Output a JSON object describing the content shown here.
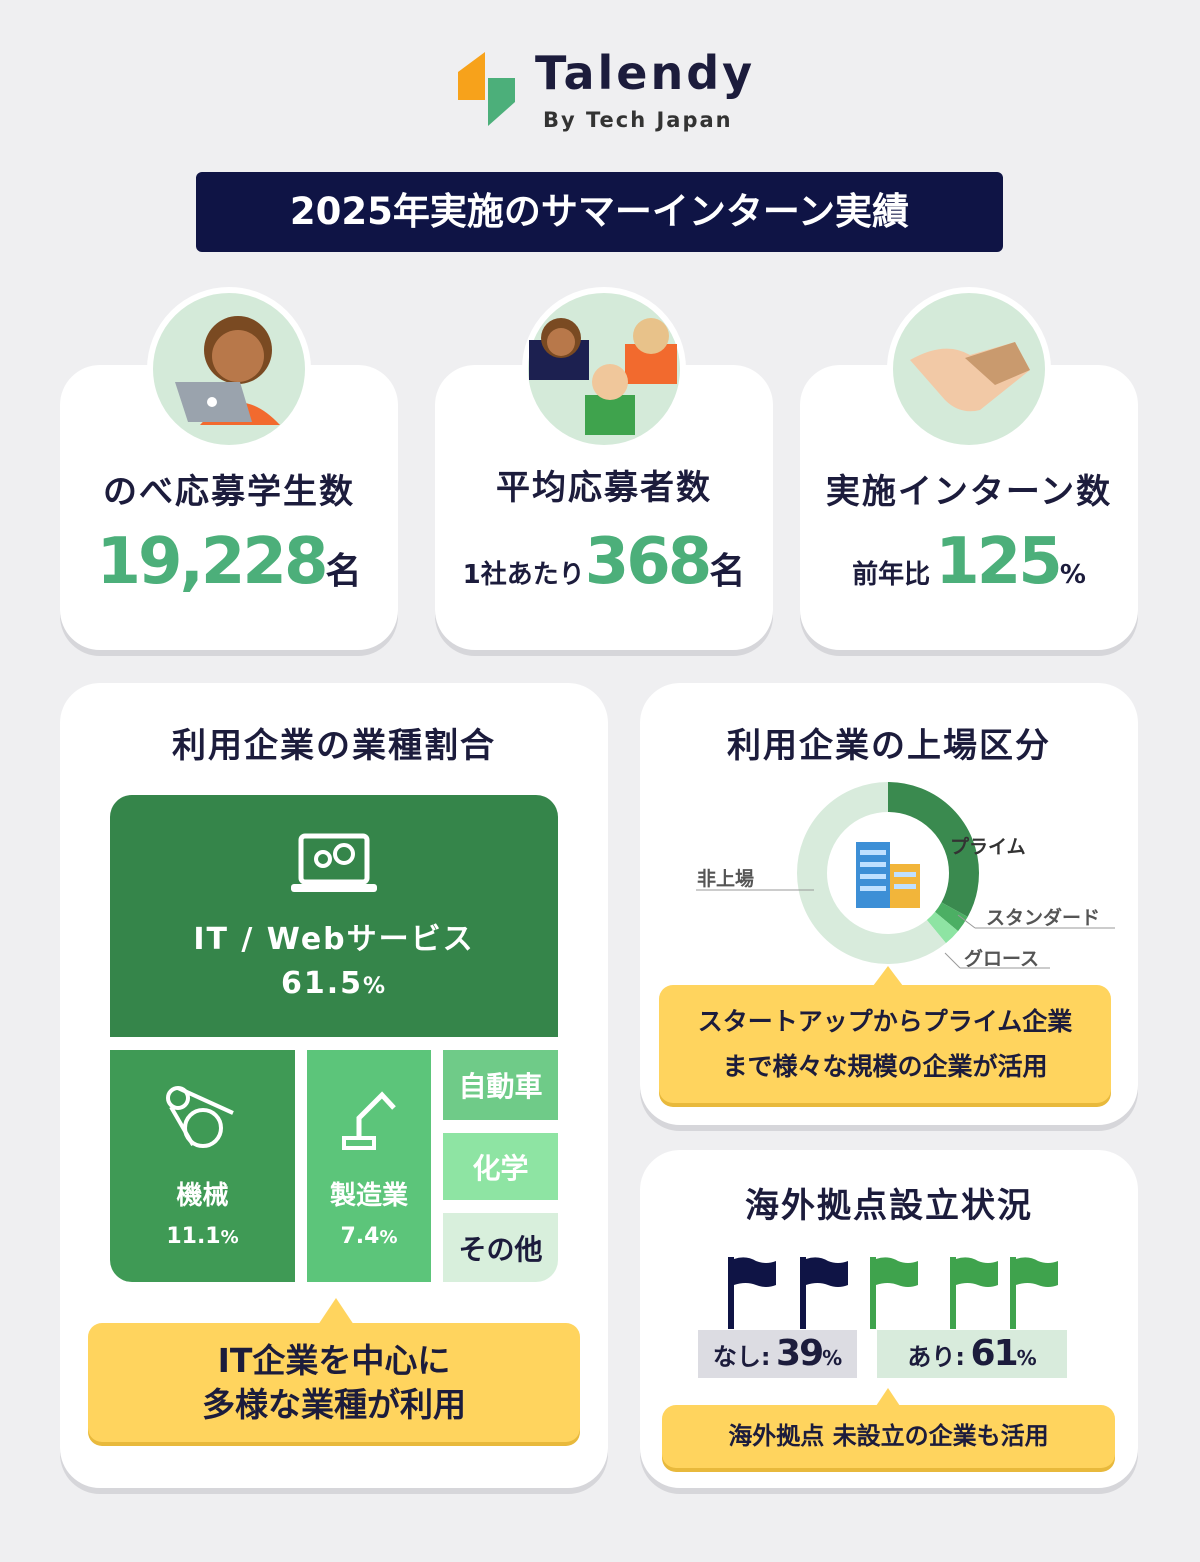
{
  "header": {
    "logo": "Talendy",
    "tagline": "By Tech Japan",
    "title": "2025年実施のサマーインターン実績"
  },
  "stats": [
    {
      "label": "のべ応募学生数",
      "value": "19,228",
      "unit": "名"
    },
    {
      "label": "平均応募者数",
      "prefix": "1社あたり",
      "value": "368",
      "unit": "名"
    },
    {
      "label": "実施インターン数",
      "prefix": "前年比",
      "value": "125",
      "unit": "%"
    }
  ],
  "industry": {
    "title": "利用企業の業種割合",
    "segments": [
      {
        "name": "IT / Webサービス",
        "value": "61.5",
        "unit": "%"
      },
      {
        "name": "機械",
        "value": "11.1",
        "unit": "%"
      },
      {
        "name": "製造業",
        "value": "7.4",
        "unit": "%"
      },
      {
        "name": "自動車"
      },
      {
        "name": "化学"
      },
      {
        "name": "その他"
      }
    ],
    "callout": [
      "IT企業を中心に",
      "多様な業種が利用"
    ]
  },
  "listing": {
    "title": "利用企業の上場区分",
    "segments": [
      {
        "name": "プライム",
        "value": 33,
        "color": "#3a8a4f"
      },
      {
        "name": "スタンダード",
        "value": 3,
        "color": "#4caf64"
      },
      {
        "name": "グロース",
        "value": 3,
        "color": "#8ee4a3"
      },
      {
        "name": "非上場",
        "value": 61,
        "color": "#d8ebdc"
      }
    ],
    "callout": [
      "スタートアップからプライム企業",
      "まで様々な規模の企業が活用"
    ]
  },
  "overseas": {
    "title": "海外拠点設立状況",
    "items": [
      {
        "name": "なし:",
        "value": "39",
        "unit": "%"
      },
      {
        "name": "あり:",
        "value": "61",
        "unit": "%"
      }
    ],
    "callout": "海外拠点 未設立の企業も活用"
  }
}
